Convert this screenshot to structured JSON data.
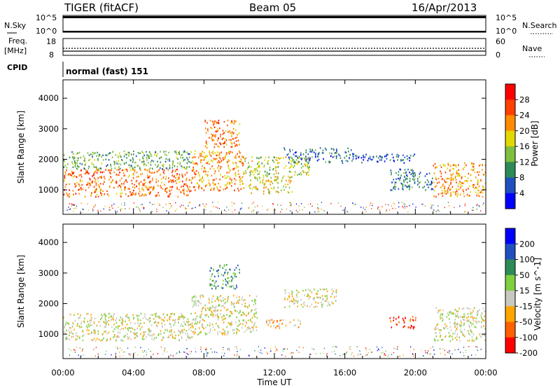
{
  "header": {
    "title": "TIGER (fitACF)",
    "beam": "Beam 05",
    "date": "16/Apr/2013"
  },
  "top_panels": {
    "nsky_label": "N.Sky",
    "nsky_ticks": [
      "10^5",
      "10^0"
    ],
    "nsearch_label": "N.Search",
    "freq_label_1": "Freq.",
    "freq_label_2": "[MHz]",
    "freq_ticks": [
      "18",
      "8"
    ],
    "nave_label": "Nave",
    "nave_ticks": [
      "60",
      "0"
    ],
    "cpid_label": "CPID",
    "cpid_value": "normal (fast) 151"
  },
  "chart_data": [
    {
      "type": "heatmap",
      "name": "power",
      "ylabel": "Slant Range [km]",
      "yticks": [
        "1000",
        "2000",
        "3000",
        "4000"
      ],
      "ylim": [
        200,
        4600
      ],
      "colorbar_label": "Power [dB]",
      "colorbar_ticks": [
        "4",
        "8",
        "12",
        "16",
        "20",
        "24",
        "28"
      ],
      "colors": [
        "#0000ff",
        "#2050c0",
        "#2e8b57",
        "#7fbf3f",
        "#e0d800",
        "#ff8c00",
        "#ff4000",
        "#ff0000"
      ],
      "regions": [
        {
          "t0": 0,
          "t1": 7.3,
          "r0": 800,
          "r1": 1700,
          "level": 5.5
        },
        {
          "t0": 0,
          "t1": 7.3,
          "r0": 1700,
          "r1": 2300,
          "level": 2.5
        },
        {
          "t0": 7.3,
          "t1": 10.3,
          "r0": 1000,
          "r1": 2300,
          "level": 5
        },
        {
          "t0": 8.0,
          "t1": 10.0,
          "r0": 2400,
          "r1": 3300,
          "level": 5.5
        },
        {
          "t0": 10.5,
          "t1": 13.0,
          "r0": 900,
          "r1": 1500,
          "level": 4
        },
        {
          "t0": 10.3,
          "t1": 14.0,
          "r0": 1500,
          "r1": 2100,
          "level": 3.5
        },
        {
          "t0": 12.5,
          "t1": 16.5,
          "r0": 1900,
          "r1": 2400,
          "level": 1.5
        },
        {
          "t0": 16.5,
          "t1": 20.0,
          "r0": 1900,
          "r1": 2200,
          "level": 1
        },
        {
          "t0": 18.5,
          "t1": 21.0,
          "r0": 1000,
          "r1": 1700,
          "level": 1.5
        },
        {
          "t0": 21.0,
          "t1": 24.0,
          "r0": 800,
          "r1": 1900,
          "level": 5
        }
      ]
    },
    {
      "type": "heatmap",
      "name": "velocity",
      "ylabel": "Slant Range [km]",
      "yticks": [
        "1000",
        "2000",
        "3000",
        "4000"
      ],
      "ylim": [
        200,
        4600
      ],
      "xlabel": "Time UT",
      "xticks": [
        "00:00",
        "04:00",
        "08:00",
        "12:00",
        "16:00",
        "20:00",
        "00:00"
      ],
      "xlim": [
        0,
        24
      ],
      "colorbar_label": "Velocity [m s^-1]",
      "colorbar_ticks": [
        "200",
        "100",
        "50",
        "15",
        "-15",
        "-50",
        "-100",
        "-200"
      ],
      "colors": [
        "#0000ff",
        "#2050c0",
        "#2e8b57",
        "#7fd040",
        "#c8c8c0",
        "#ffa500",
        "#ff6000",
        "#ff0000"
      ],
      "regions": [
        {
          "t0": 0,
          "t1": 7.3,
          "r0": 800,
          "r1": 1700,
          "level": 4
        },
        {
          "t0": 7.3,
          "t1": 11.0,
          "r0": 1000,
          "r1": 2300,
          "level": 4
        },
        {
          "t0": 8.3,
          "t1": 10.0,
          "r0": 2500,
          "r1": 3300,
          "level": 2
        },
        {
          "t0": 12.5,
          "t1": 15.5,
          "r0": 1900,
          "r1": 2500,
          "level": 4
        },
        {
          "t0": 11.5,
          "t1": 13.5,
          "r0": 1200,
          "r1": 1500,
          "level": 5
        },
        {
          "t0": 18.5,
          "t1": 20.0,
          "r0": 1200,
          "r1": 1600,
          "level": 6
        },
        {
          "t0": 21.0,
          "t1": 24.0,
          "r0": 800,
          "r1": 1900,
          "level": 4
        }
      ]
    }
  ]
}
